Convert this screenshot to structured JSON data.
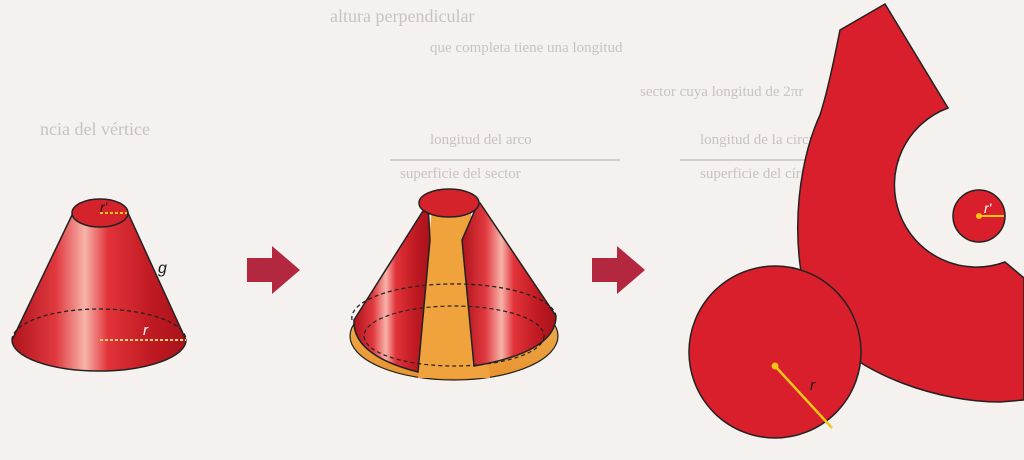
{
  "labels": {
    "cone_top_radius": "r'",
    "cone_slant": "g",
    "cone_base_radius": "r",
    "net_circle_radius": "r",
    "net_small_radius": "r'"
  },
  "background_text": [
    "altura perpendicular",
    "ncia del vértice",
    "que completa tiene una longitud",
    "sector cuya longitud de 2πr",
    "longitud de la circunferencia",
    "superficie del círculo",
    "longitud del arco",
    "superficie del sector"
  ],
  "colors": {
    "cone_red": "#d8252d",
    "net_red": "#d81f2b",
    "inner_orange": "#f2a040",
    "arrow": "#b3283f",
    "radius_line": "#f5c518"
  }
}
